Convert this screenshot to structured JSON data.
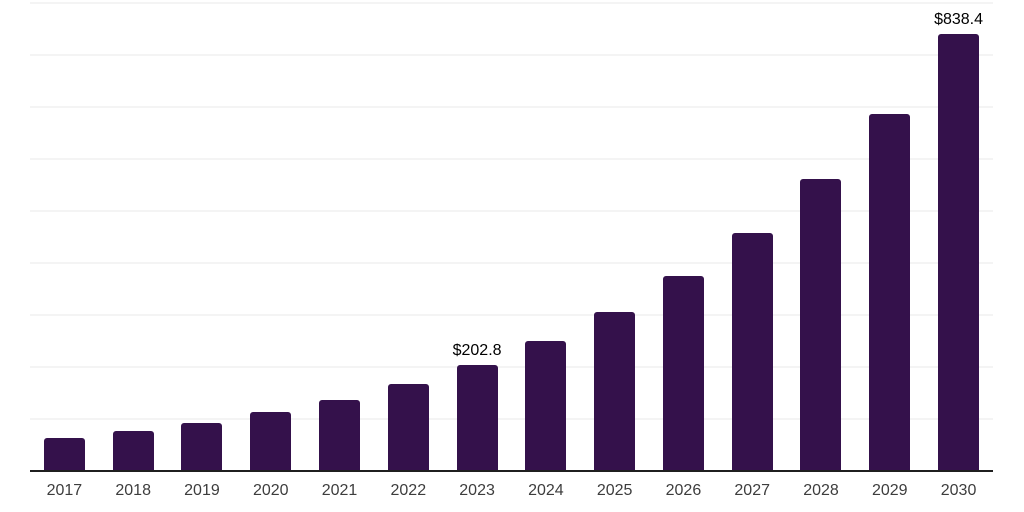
{
  "chart_data": {
    "type": "bar",
    "title": "",
    "xlabel": "",
    "ylabel": "",
    "categories": [
      "2017",
      "2018",
      "2019",
      "2020",
      "2021",
      "2022",
      "2023",
      "2024",
      "2025",
      "2026",
      "2027",
      "2028",
      "2029",
      "2030"
    ],
    "values": [
      61.5,
      75.0,
      90.3,
      111.2,
      134.8,
      165.6,
      202.8,
      248.4,
      304.2,
      372.6,
      456.4,
      559.0,
      684.6,
      838.4
    ],
    "value_labels": [
      "",
      "",
      "",
      "",
      "",
      "",
      "$202.8",
      "",
      "",
      "",
      "",
      "",
      "",
      "$838.4"
    ],
    "ylim": [
      0,
      900
    ],
    "grid_step": 100,
    "grid": "horizontal",
    "legend": "none",
    "colors": {
      "bar": "#34114B",
      "axis_line": "#1f1f1f",
      "gridline": "#f4f4f4",
      "tick_label": "#3d3d3d",
      "value_label": "#000000",
      "background": "#ffffff"
    }
  }
}
